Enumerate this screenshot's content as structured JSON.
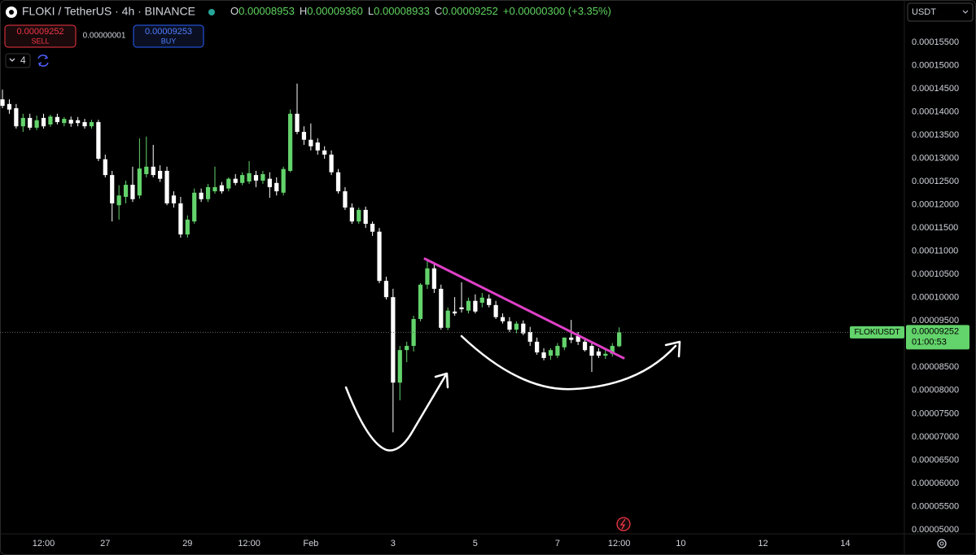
{
  "chart_data": {
    "type": "candlestick",
    "title": "FLOKI / TetherUS · 4h · BINANCE",
    "ohlc_legend": {
      "labels": [
        "O",
        "H",
        "L",
        "C"
      ],
      "values": [
        "0.00008953",
        "0.00009360",
        "0.00008933",
        "0.00009252"
      ],
      "change": "+0.00000300 (+3.35%)"
    },
    "trade": {
      "sell_price": "0.00009252",
      "sell_label": "SELL",
      "spread": "0.00000001",
      "buy_price": "0.00009253",
      "buy_label": "BUY"
    },
    "indicator_count": "4",
    "currency": "USDT",
    "price_tag": {
      "symbol": "FLOKIUSDT",
      "countdown": "01:00:53"
    },
    "up_color": "#63d36b",
    "down_color": "#ffffff",
    "open": [
      0.0001427,
      0.0001417,
      0.0001408,
      0.0001369,
      0.0001387,
      0.0001366,
      0.0001387,
      0.0001373,
      0.0001389,
      0.0001376,
      0.0001383,
      0.0001382,
      0.0001378,
      0.0001369,
      0.0001378,
      0.0001298,
      0.0001264,
      0.0001199,
      0.0001217,
      0.0001243,
      0.000122,
      0.0001266,
      0.0001282,
      0.0001273,
      0.0001273,
      0.000122,
      0.0001203,
      0.0001136,
      0.0001164,
      0.0001226,
      0.0001212,
      0.0001229,
      0.0001242,
      0.0001235,
      0.0001256,
      0.0001247,
      0.000125,
      0.0001264,
      0.0001252,
      0.0001256,
      0.0001247,
      0.0001226,
      0.0001273,
      0.0001396,
      0.0001357,
      0.000134,
      0.0001334,
      0.0001317,
      0.0001308,
      0.000127,
      0.0001229,
      0.0001194,
      0.0001164,
      0.0001189,
      0.0001159,
      0.0001142,
      0.0001036,
      0.0001001,
      8.17e-05,
      8.87e-05,
      8.96e-05,
      9.54e-05,
      0.0001028,
      0.0001063,
      0.0001019,
      9.35e-05,
      9.7e-05,
      9.79e-05,
      9.72e-05,
      9.93e-05,
      9.89e-05,
      9.98e-05,
      9.84e-05,
      9.58e-05,
      9.49e-05,
      9.31e-05,
      9.44e-05,
      9.26e-05,
      9.05e-05,
      8.82e-05,
      8.75e-05,
      8.75e-05,
      8.93e-05,
      9.14e-05,
      9.17e-05,
      9.05e-05,
      8.96e-05,
      8.84e-05,
      8.75e-05,
      8.79e-05,
      8.953e-05
    ],
    "high": [
      0.0001448,
      0.0001427,
      0.0001417,
      0.0001396,
      0.0001396,
      0.0001392,
      0.0001396,
      0.0001394,
      0.0001396,
      0.0001389,
      0.000139,
      0.0001389,
      0.0001385,
      0.0001383,
      0.0001383,
      0.0001308,
      0.0001273,
      0.0001242,
      0.0001252,
      0.0001282,
      0.0001343,
      0.0001347,
      0.0001329,
      0.0001285,
      0.0001282,
      0.0001229,
      0.0001217,
      0.0001177,
      0.0001235,
      0.0001235,
      0.0001245,
      0.0001282,
      0.0001249,
      0.0001259,
      0.0001266,
      0.000127,
      0.0001294,
      0.0001273,
      0.0001273,
      0.000127,
      0.0001259,
      0.0001282,
      0.0001405,
      0.0001461,
      0.0001369,
      0.0001375,
      0.0001343,
      0.0001326,
      0.0001317,
      0.0001277,
      0.0001238,
      0.0001203,
      0.0001194,
      0.0001196,
      0.0001164,
      0.000115,
      0.0001045,
      0.0001019,
      8.96e-05,
      9.05e-05,
      9.61e-05,
      0.0001031,
      0.0001084,
      0.0001072,
      0.0001028,
      9.79e-05,
      0.0001001,
      0.0001033,
      0.0001,
      0.0001007,
      0.000101,
      0.0001007,
      9.93e-05,
      9.66e-05,
      9.58e-05,
      9.49e-05,
      9.51e-05,
      9.37e-05,
      9.14e-05,
      8.91e-05,
      8.91e-05,
      9.02e-05,
      9.14e-05,
      9.52e-05,
      9.26e-05,
      9.14e-05,
      9.05e-05,
      8.91e-05,
      8.87e-05,
      9.02e-05,
      9.36e-05
    ],
    "low": [
      0.0001408,
      0.0001396,
      0.0001364,
      0.0001357,
      0.0001361,
      0.0001361,
      0.0001364,
      0.0001368,
      0.0001373,
      0.0001369,
      0.0001368,
      0.0001369,
      0.0001364,
      0.0001364,
      0.0001294,
      0.0001259,
      0.0001164,
      0.0001168,
      0.0001203,
      0.0001206,
      0.0001213,
      0.0001259,
      0.0001259,
      0.0001249,
      0.0001199,
      0.0001194,
      0.0001129,
      0.0001129,
      0.0001159,
      0.0001206,
      0.0001206,
      0.0001224,
      0.0001224,
      0.0001229,
      0.0001242,
      0.0001242,
      0.0001245,
      0.0001238,
      0.0001245,
      0.0001215,
      0.000122,
      0.000122,
      0.000127,
      0.0001352,
      0.0001329,
      0.0001317,
      0.0001308,
      0.0001299,
      0.0001264,
      0.0001224,
      0.0001189,
      0.0001159,
      0.0001159,
      0.000115,
      0.0001133,
      0.0001031,
      9.96e-05,
      7.1e-05,
      7.79e-05,
      8.61e-05,
      8.84e-05,
      9.49e-05,
      0.0001019,
      0.000101,
      9.31e-05,
      9.3e-05,
      9.61e-05,
      9.68e-05,
      9.66e-05,
      9.66e-05,
      9.79e-05,
      9.79e-05,
      9.54e-05,
      9.44e-05,
      9.26e-05,
      9.23e-05,
      9.19e-05,
      8.96e-05,
      8.77e-05,
      8.65e-05,
      8.66e-05,
      8.7e-05,
      8.87e-05,
      9.02e-05,
      8.98e-05,
      8.84e-05,
      8.4e-05,
      8.7e-05,
      8.68e-05,
      8.73e-05,
      8.933e-05
    ],
    "close": [
      0.0001413,
      0.0001405,
      0.0001369,
      0.0001387,
      0.0001366,
      0.0001382,
      0.0001369,
      0.000139,
      0.0001378,
      0.0001385,
      0.0001375,
      0.0001376,
      0.0001369,
      0.0001378,
      0.0001299,
      0.0001264,
      0.0001203,
      0.000122,
      0.0001243,
      0.0001212,
      0.0001278,
      0.0001282,
      0.0001264,
      0.0001256,
      0.0001203,
      0.0001203,
      0.0001136,
      0.0001168,
      0.0001226,
      0.0001212,
      0.0001238,
      0.0001238,
      0.0001229,
      0.0001256,
      0.0001247,
      0.0001264,
      0.0001268,
      0.0001252,
      0.0001266,
      0.0001238,
      0.0001229,
      0.0001277,
      0.0001396,
      0.0001357,
      0.000134,
      0.0001326,
      0.0001317,
      0.0001308,
      0.000127,
      0.0001229,
      0.0001194,
      0.0001164,
      0.0001189,
      0.0001159,
      0.0001142,
      0.0001036,
      0.0001001,
      8.17e-05,
      8.87e-05,
      8.96e-05,
      9.54e-05,
      0.0001028,
      0.0001063,
      0.0001019,
      9.35e-05,
      9.72e-05,
      9.66e-05,
      9.75e-05,
      9.93e-05,
      9.7e-05,
      0.0001,
      9.84e-05,
      9.58e-05,
      9.49e-05,
      9.31e-05,
      9.44e-05,
      9.23e-05,
      9.05e-05,
      8.82e-05,
      8.7e-05,
      8.87e-05,
      8.96e-05,
      9.14e-05,
      9.09e-05,
      9.05e-05,
      8.87e-05,
      8.75e-05,
      8.75e-05,
      8.79e-05,
      8.96e-05,
      9.252e-05
    ],
    "xlim": [
      -0.36,
      131.5
    ],
    "xticks": [
      {
        "value": 6,
        "label": "12:00"
      },
      {
        "value": 15,
        "label": "27"
      },
      {
        "value": 27,
        "label": "29"
      },
      {
        "value": 36,
        "label": "12:00"
      },
      {
        "value": 45,
        "label": "Feb"
      },
      {
        "value": 57,
        "label": "3"
      },
      {
        "value": 69,
        "label": "5"
      },
      {
        "value": 81,
        "label": "7"
      },
      {
        "value": 90,
        "label": "12:00"
      },
      {
        "value": 99,
        "label": "10"
      },
      {
        "value": 111,
        "label": "12"
      },
      {
        "value": 123,
        "label": "14"
      }
    ],
    "ylim": [
      4.93e-05,
      0.0001641
    ],
    "yticks": [
      {
        "value": 0.000155,
        "label": "0.00015500"
      },
      {
        "value": 0.00015,
        "label": "0.00015000"
      },
      {
        "value": 0.000145,
        "label": "0.00014500"
      },
      {
        "value": 0.00014,
        "label": "0.00014000"
      },
      {
        "value": 0.000135,
        "label": "0.00013500"
      },
      {
        "value": 0.00013,
        "label": "0.00013000"
      },
      {
        "value": 0.000125,
        "label": "0.00012500"
      },
      {
        "value": 0.00012,
        "label": "0.00012000"
      },
      {
        "value": 0.000115,
        "label": "0.00011500"
      },
      {
        "value": 0.00011,
        "label": "0.00011000"
      },
      {
        "value": 0.000105,
        "label": "0.00010500"
      },
      {
        "value": 0.0001,
        "label": "0.00010000"
      },
      {
        "value": 9.5e-05,
        "label": "0.00009500"
      },
      {
        "value": 8.5e-05,
        "label": "0.00008500"
      },
      {
        "value": 8e-05,
        "label": "0.00008000"
      },
      {
        "value": 7.5e-05,
        "label": "0.00007500"
      },
      {
        "value": 7e-05,
        "label": "0.00007000"
      },
      {
        "value": 6.5e-05,
        "label": "0.00006500"
      },
      {
        "value": 6e-05,
        "label": "0.00006000"
      },
      {
        "value": 5.5e-05,
        "label": "0.00005500"
      },
      {
        "value": 5e-05,
        "label": "0.00005000"
      }
    ],
    "grid": false
  }
}
